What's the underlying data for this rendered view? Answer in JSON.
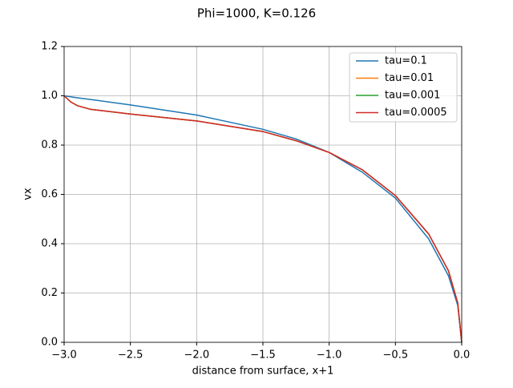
{
  "chart_data": {
    "type": "line",
    "title": "Phi=1000, K=0.126",
    "x_label": "distance from surface, x+1",
    "y_label": "vx",
    "x": [
      -3,
      -2.95,
      -2.9,
      -2.8,
      -2.5,
      -2,
      -1.5,
      -1.25,
      -1,
      -0.75,
      -0.5,
      -0.25,
      -0.1,
      -0.03,
      0
    ],
    "series": [
      {
        "name": "tau=0.1",
        "color": "#1f77b4",
        "values": [
          1.0,
          0.996,
          0.992,
          0.985,
          0.963,
          0.922,
          0.864,
          0.825,
          0.77,
          0.69,
          0.585,
          0.42,
          0.27,
          0.15,
          0.0
        ]
      },
      {
        "name": "tau=0.01",
        "color": "#ff7f0e",
        "values": [
          1.0,
          0.975,
          0.96,
          0.945,
          0.926,
          0.898,
          0.855,
          0.818,
          0.77,
          0.7,
          0.595,
          0.44,
          0.29,
          0.16,
          0.0
        ]
      },
      {
        "name": "tau=0.001",
        "color": "#2ca02c",
        "values": [
          1.0,
          0.975,
          0.96,
          0.945,
          0.926,
          0.898,
          0.855,
          0.818,
          0.77,
          0.7,
          0.595,
          0.44,
          0.29,
          0.16,
          0.0
        ]
      },
      {
        "name": "tau=0.0005",
        "color": "#d62728",
        "values": [
          1.0,
          0.975,
          0.96,
          0.945,
          0.926,
          0.898,
          0.855,
          0.818,
          0.77,
          0.7,
          0.595,
          0.44,
          0.29,
          0.16,
          0.0
        ]
      }
    ],
    "xlim": [
      -3,
      0
    ],
    "xticks": [
      {
        "value": -3,
        "label": "−3.0"
      },
      {
        "value": -2.5,
        "label": "−2.5"
      },
      {
        "value": -2,
        "label": "−2.0"
      },
      {
        "value": -1.5,
        "label": "−1.5"
      },
      {
        "value": -1,
        "label": "−1.0"
      },
      {
        "value": -0.5,
        "label": "−0.5"
      },
      {
        "value": 0,
        "label": "0.0"
      }
    ],
    "ylim": [
      0,
      1.2
    ],
    "yticks": [
      {
        "value": 0,
        "label": "0.0"
      },
      0.2,
      0.4,
      0.6,
      0.8,
      {
        "value": 1,
        "label": "1.0"
      },
      1.2
    ],
    "grid": true,
    "legend": "upper right"
  }
}
